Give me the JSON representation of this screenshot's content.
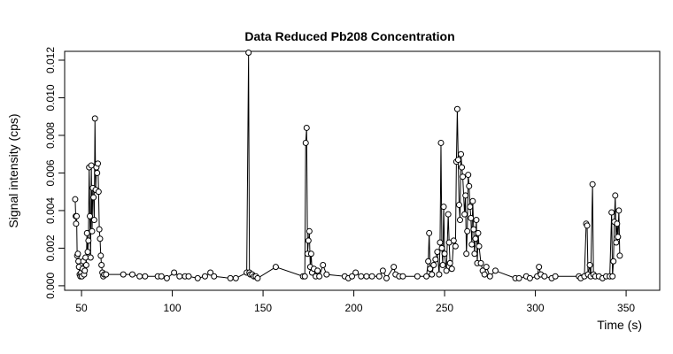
{
  "chart_data": {
    "type": "line",
    "title": "Data Reduced Pb208 Concentration",
    "x_label": "Time (s)",
    "y_label": "Signal intensity (cps)",
    "x": [
      46.5,
      46.8,
      47,
      47.3,
      47.6,
      48,
      48.3,
      48.6,
      49,
      49.4,
      49.8,
      50.2,
      50.6,
      51,
      51.4,
      51.8,
      52.2,
      52.6,
      53,
      53.4,
      53.8,
      54.2,
      54.6,
      55,
      55.4,
      55.8,
      56.2,
      56.6,
      57,
      57.4,
      57.8,
      58.2,
      58.6,
      59,
      59.4,
      59.8,
      60.2,
      60.6,
      61,
      61.5,
      62,
      62.5,
      63.5,
      73,
      78,
      82,
      85,
      92,
      94,
      97,
      101,
      104,
      107,
      109,
      114,
      118,
      121,
      123,
      132,
      135,
      141,
      142,
      142.5,
      143,
      144,
      145,
      146,
      147,
      157,
      172,
      173,
      173.5,
      174,
      174.5,
      175,
      175.5,
      176,
      176.5,
      177,
      178,
      179,
      180,
      181,
      183,
      185,
      195,
      197,
      199,
      201,
      204,
      207,
      210,
      214,
      216,
      218,
      222,
      223,
      225,
      227,
      235,
      240,
      241,
      241.5,
      242,
      243,
      244,
      245,
      246,
      247,
      247.5,
      248,
      248.5,
      249,
      249.5,
      250,
      251,
      252,
      252.5,
      253,
      254,
      255,
      256,
      256.5,
      257,
      257.5,
      258,
      258.5,
      259,
      259.5,
      260,
      261,
      261.5,
      262,
      262.5,
      263,
      263.5,
      264,
      264.5,
      265,
      265.5,
      266,
      266.5,
      267,
      267.5,
      268,
      268.5,
      269,
      270,
      271,
      272,
      273,
      275,
      278,
      289,
      291,
      295,
      297,
      301,
      302,
      303,
      305,
      309,
      311,
      324,
      325,
      327,
      328,
      328.5,
      329,
      330,
      330.5,
      331.5,
      332,
      333,
      335,
      337,
      339,
      341,
      342,
      342.5,
      343,
      343.5,
      344,
      344.5,
      345,
      345.5,
      346,
      346.5
    ],
    "series": [
      {
        "color": "#000000",
        "values": [
          0.0046,
          0.0037,
          0.0033,
          0.0037,
          0.0016,
          0.0017,
          0.0013,
          0.001,
          0.0006,
          0.0005,
          0.0007,
          0.0005,
          0.0009,
          0.0013,
          0.0006,
          0.0008,
          0.0015,
          0.0011,
          0.0028,
          0.0018,
          0.0024,
          0.0063,
          0.0037,
          0.0015,
          0.0064,
          0.0029,
          0.0052,
          0.0047,
          0.0035,
          0.0089,
          0.0051,
          0.0063,
          0.006,
          0.0065,
          0.005,
          0.003,
          0.0025,
          0.0016,
          0.0011,
          0.0007,
          0.0005,
          0.0006,
          0.0006,
          0.0006,
          0.0006,
          0.0005,
          0.0005,
          0.0005,
          0.0005,
          0.0004,
          0.0007,
          0.0005,
          0.0005,
          0.0005,
          0.0004,
          0.0005,
          0.0007,
          0.0005,
          0.0004,
          0.0004,
          0.0007,
          0.0124,
          0.0007,
          0.0006,
          0.0006,
          0.0005,
          0.0005,
          0.0004,
          0.001,
          0.0005,
          0.0005,
          0.0076,
          0.0084,
          0.0017,
          0.0024,
          0.0029,
          0.001,
          0.0017,
          0.0007,
          0.0009,
          0.0005,
          0.0008,
          0.0005,
          0.0011,
          0.0006,
          0.0005,
          0.0004,
          0.0005,
          0.0007,
          0.0005,
          0.0005,
          0.0005,
          0.0005,
          0.0008,
          0.0004,
          0.001,
          0.0006,
          0.0005,
          0.0005,
          0.0005,
          0.0005,
          0.0013,
          0.0028,
          0.0009,
          0.0006,
          0.0011,
          0.0014,
          0.0018,
          0.0006,
          0.0023,
          0.0076,
          0.002,
          0.0011,
          0.0042,
          0.0017,
          0.0008,
          0.0038,
          0.0023,
          0.0012,
          0.0009,
          0.0024,
          0.0021,
          0.0066,
          0.0094,
          0.0067,
          0.0043,
          0.0035,
          0.007,
          0.0063,
          0.0058,
          0.0038,
          0.0048,
          0.0017,
          0.0029,
          0.0059,
          0.0053,
          0.0042,
          0.0036,
          0.0022,
          0.0045,
          0.003,
          0.0017,
          0.0025,
          0.0035,
          0.0012,
          0.0028,
          0.0021,
          0.0012,
          0.0008,
          0.0006,
          0.001,
          0.0005,
          0.0008,
          0.0004,
          0.0004,
          0.0005,
          0.0004,
          0.0005,
          0.001,
          0.0006,
          0.0005,
          0.0004,
          0.0005,
          0.0005,
          0.0004,
          0.0005,
          0.0033,
          0.0032,
          0.0006,
          0.0011,
          0.0005,
          0.0054,
          0.0006,
          0.0005,
          0.0005,
          0.0004,
          0.0005,
          0.0005,
          0.0039,
          0.0005,
          0.0013,
          0.0034,
          0.0048,
          0.0023,
          0.0033,
          0.0026,
          0.004,
          0.0016
        ]
      }
    ],
    "xlim": [
      40.7,
      368.5
    ],
    "ylim": [
      -0.00024,
      0.01247
    ],
    "xticks": [
      50,
      100,
      150,
      200,
      250,
      300,
      350
    ],
    "yticks": [
      {
        "value": 0,
        "label": "0.000"
      },
      {
        "value": 0.002,
        "label": "0.002"
      },
      {
        "value": 0.004,
        "label": "0.004"
      },
      {
        "value": 0.006,
        "label": "0.006"
      },
      {
        "value": 0.008,
        "label": "0.008"
      },
      {
        "value": 0.01,
        "label": "0.010"
      },
      {
        "value": 0.012,
        "label": "0.012"
      }
    ]
  }
}
